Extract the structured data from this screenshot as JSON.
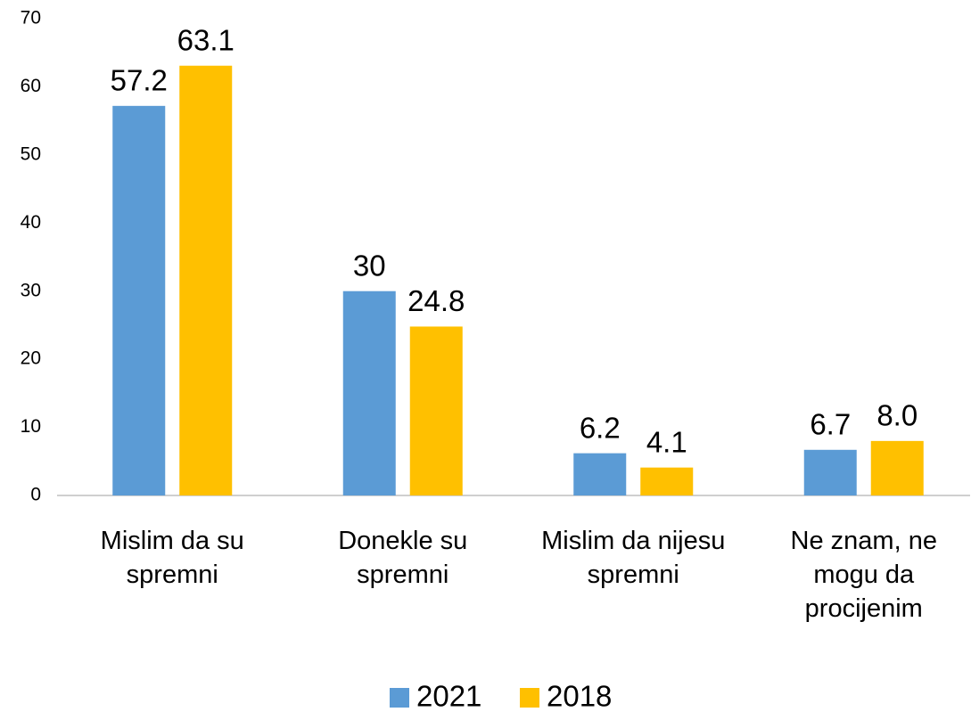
{
  "chart_data": {
    "type": "bar",
    "categories": [
      "Mislim da su spremni",
      "Donekle su spremni",
      "Mislim da nijesu spremni",
      "Ne znam, ne mogu da procijenim"
    ],
    "series": [
      {
        "name": "2021",
        "color": "#5b9bd5",
        "values": [
          57.2,
          30,
          6.2,
          6.7
        ]
      },
      {
        "name": "2018",
        "color": "#ffc000",
        "values": [
          63.1,
          24.8,
          4.1,
          8.0
        ],
        "value_labels": [
          "63.1",
          "24.8",
          "4.1",
          "8.0"
        ]
      }
    ],
    "ylim": [
      0,
      70
    ],
    "yticks": [
      0,
      10,
      20,
      30,
      40,
      50,
      60,
      70
    ],
    "grid": false,
    "legend": "bottom"
  }
}
